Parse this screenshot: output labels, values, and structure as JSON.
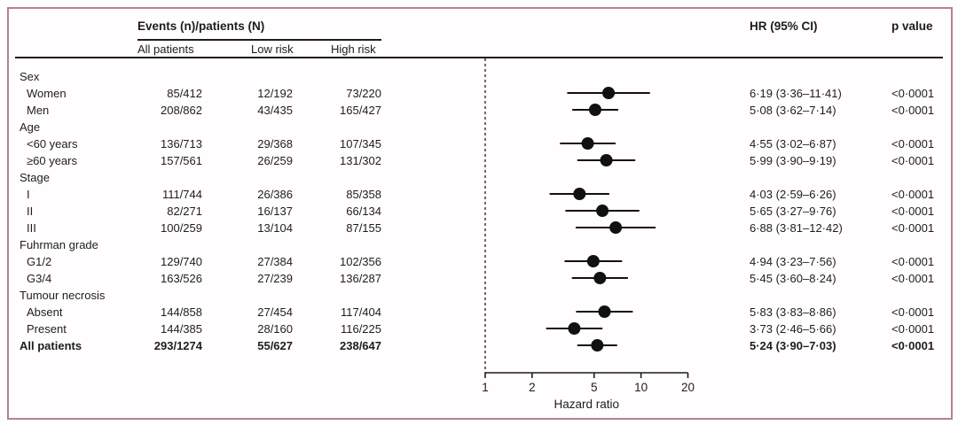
{
  "header": {
    "events_header": "Events (n)/patients (N)",
    "subcolumns": [
      "All patients",
      "Low risk",
      "High risk"
    ],
    "hr_header": "HR (95% CI)",
    "p_header": "p value"
  },
  "colors": {
    "frame_border": "#b3838f",
    "text": "#1d1d1b",
    "marker": "#111111"
  },
  "chart_data": {
    "type": "forest",
    "xscale": "log",
    "xlim": [
      1,
      20
    ],
    "xticks": [
      1,
      2,
      5,
      10,
      20
    ],
    "xlabel": "Hazard ratio",
    "reference_line": 1,
    "rows": [
      {
        "label": "Sex",
        "group": true
      },
      {
        "label": "Women",
        "indent": true,
        "all_patients": "85/412",
        "low_risk": "12/192",
        "high_risk": "73/220",
        "hr": 6.19,
        "ci_low": 3.36,
        "ci_high": 11.41,
        "hr_text": "6·19 (3·36–11·41)",
        "p": "<0·0001"
      },
      {
        "label": "Men",
        "indent": true,
        "all_patients": "208/862",
        "low_risk": "43/435",
        "high_risk": "165/427",
        "hr": 5.08,
        "ci_low": 3.62,
        "ci_high": 7.14,
        "hr_text": "5·08 (3·62–7·14)",
        "p": "<0·0001"
      },
      {
        "label": "Age",
        "group": true
      },
      {
        "label": "<60 years",
        "indent": true,
        "all_patients": "136/713",
        "low_risk": "29/368",
        "high_risk": "107/345",
        "hr": 4.55,
        "ci_low": 3.02,
        "ci_high": 6.87,
        "hr_text": "4·55 (3·02–6·87)",
        "p": "<0·0001"
      },
      {
        "label": "≥60 years",
        "indent": true,
        "all_patients": "157/561",
        "low_risk": "26/259",
        "high_risk": "131/302",
        "hr": 5.99,
        "ci_low": 3.9,
        "ci_high": 9.19,
        "hr_text": "5·99 (3·90–9·19)",
        "p": "<0·0001"
      },
      {
        "label": "Stage",
        "group": true
      },
      {
        "label": "I",
        "indent": true,
        "all_patients": "111/744",
        "low_risk": "26/386",
        "high_risk": "85/358",
        "hr": 4.03,
        "ci_low": 2.59,
        "ci_high": 6.26,
        "hr_text": "4·03 (2·59–6·26)",
        "p": "<0·0001"
      },
      {
        "label": "II",
        "indent": true,
        "all_patients": "82/271",
        "low_risk": "16/137",
        "high_risk": "66/134",
        "hr": 5.65,
        "ci_low": 3.27,
        "ci_high": 9.76,
        "hr_text": "5·65 (3·27–9·76)",
        "p": "<0·0001"
      },
      {
        "label": "III",
        "indent": true,
        "all_patients": "100/259",
        "low_risk": "13/104",
        "high_risk": "87/155",
        "hr": 6.88,
        "ci_low": 3.81,
        "ci_high": 12.42,
        "hr_text": "6·88 (3·81–12·42)",
        "p": "<0·0001"
      },
      {
        "label": "Fuhrman grade",
        "group": true
      },
      {
        "label": "G1/2",
        "indent": true,
        "all_patients": "129/740",
        "low_risk": "27/384",
        "high_risk": "102/356",
        "hr": 4.94,
        "ci_low": 3.23,
        "ci_high": 7.56,
        "hr_text": "4·94 (3·23–7·56)",
        "p": "<0·0001"
      },
      {
        "label": "G3/4",
        "indent": true,
        "all_patients": "163/526",
        "low_risk": "27/239",
        "high_risk": "136/287",
        "hr": 5.45,
        "ci_low": 3.6,
        "ci_high": 8.24,
        "hr_text": "5·45 (3·60–8·24)",
        "p": "<0·0001"
      },
      {
        "label": "Tumour necrosis",
        "group": true
      },
      {
        "label": "Absent",
        "indent": true,
        "all_patients": "144/858",
        "low_risk": "27/454",
        "high_risk": "117/404",
        "hr": 5.83,
        "ci_low": 3.83,
        "ci_high": 8.86,
        "hr_text": "5·83 (3·83–8·86)",
        "p": "<0·0001"
      },
      {
        "label": "Present",
        "indent": true,
        "all_patients": "144/385",
        "low_risk": "28/160",
        "high_risk": "116/225",
        "hr": 3.73,
        "ci_low": 2.46,
        "ci_high": 5.66,
        "hr_text": "3·73 (2·46–5·66)",
        "p": "<0·0001"
      },
      {
        "label": "All patients",
        "emphasis": true,
        "all_patients": "293/1274",
        "low_risk": "55/627",
        "high_risk": "238/647",
        "hr": 5.24,
        "ci_low": 3.9,
        "ci_high": 7.03,
        "hr_text": "5·24 (3·90–7·03)",
        "p": "<0·0001"
      }
    ]
  }
}
